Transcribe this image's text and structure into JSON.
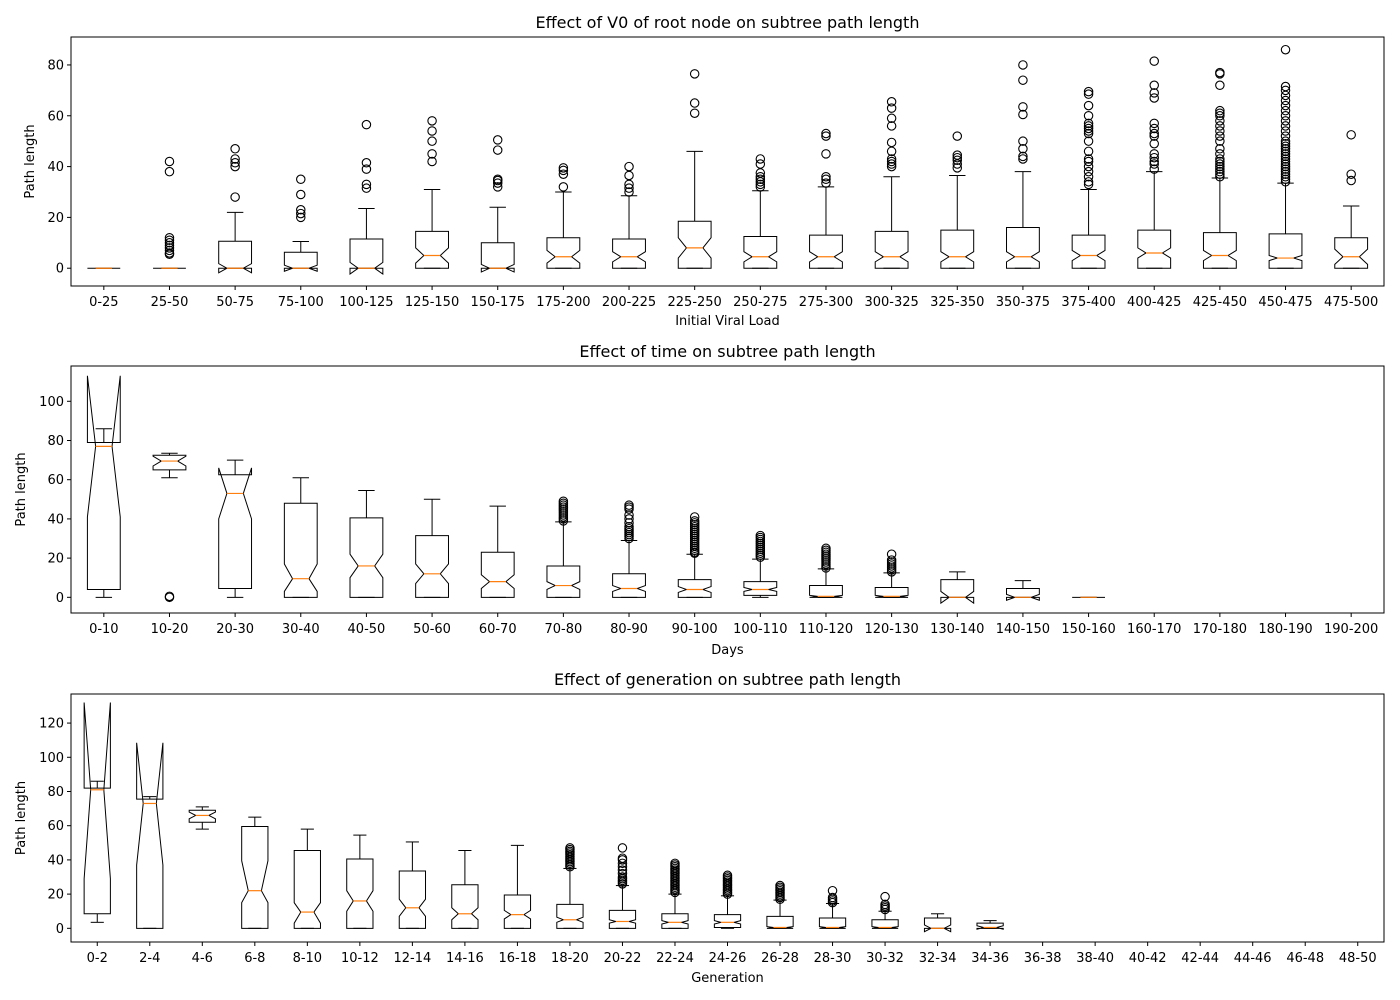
{
  "chart_data": [
    {
      "type": "boxplot",
      "title": "Effect of V0 of root node on subtree path length",
      "xlabel": "Initial Viral Load",
      "ylabel": "Path length",
      "ylim": [
        -7,
        91
      ],
      "yticks": [
        0,
        20,
        40,
        60,
        80
      ],
      "grid": false,
      "categories": [
        "0-25",
        "25-50",
        "50-75",
        "75-100",
        "100-125",
        "125-150",
        "150-175",
        "175-200",
        "200-225",
        "225-250",
        "250-275",
        "275-300",
        "300-325",
        "325-350",
        "350-375",
        "375-400",
        "400-425",
        "425-450",
        "450-475",
        "475-500"
      ],
      "boxes": [
        {
          "wl": 0,
          "q1": 0,
          "med": 0,
          "q3": 0,
          "wh": 0,
          "nl": 0,
          "nh": 0,
          "fliers": []
        },
        {
          "wl": 0,
          "q1": 0,
          "med": 0,
          "q3": 0,
          "wh": 0,
          "nl": 0,
          "nh": 0,
          "fliers": [
            5.5,
            6,
            7,
            8,
            9,
            10,
            11,
            12,
            38,
            42
          ]
        },
        {
          "wl": 0,
          "q1": 0,
          "med": 0,
          "q3": 10.6,
          "wh": 22,
          "nl": -1.8,
          "nh": 1.8,
          "fliers": [
            28,
            40,
            41.5,
            43,
            47
          ]
        },
        {
          "wl": 0,
          "q1": 0,
          "med": 0,
          "q3": 6.3,
          "wh": 10.5,
          "nl": -1.2,
          "nh": 1.2,
          "fliers": [
            20,
            21.5,
            23,
            29,
            35
          ]
        },
        {
          "wl": 0,
          "q1": 0,
          "med": 0,
          "q3": 11.5,
          "wh": 23.5,
          "nl": -2.3,
          "nh": 2.3,
          "fliers": [
            31.5,
            33,
            39,
            41.5,
            56.5
          ]
        },
        {
          "wl": 0,
          "q1": 0,
          "med": 5,
          "q3": 14.5,
          "wh": 31,
          "nl": 2,
          "nh": 8,
          "fliers": [
            42,
            45,
            50,
            54,
            58
          ]
        },
        {
          "wl": 0,
          "q1": 0,
          "med": 0,
          "q3": 10,
          "wh": 24,
          "nl": -1.5,
          "nh": 1.5,
          "fliers": [
            32,
            33.5,
            34.5,
            35,
            46.5,
            50.5
          ]
        },
        {
          "wl": 0,
          "q1": 0,
          "med": 4.5,
          "q3": 12,
          "wh": 30,
          "nl": 2,
          "nh": 7,
          "fliers": [
            32,
            37,
            38.5,
            39.5
          ]
        },
        {
          "wl": 0,
          "q1": 0,
          "med": 4.5,
          "q3": 11.5,
          "wh": 28.5,
          "nl": 2.5,
          "nh": 6.5,
          "fliers": [
            30,
            31.5,
            33,
            36.5,
            40
          ]
        },
        {
          "wl": 0,
          "q1": 0,
          "med": 8,
          "q3": 18.5,
          "wh": 46,
          "nl": 4,
          "nh": 12,
          "fliers": [
            61,
            65,
            76.5
          ]
        },
        {
          "wl": 0,
          "q1": 0,
          "med": 4.5,
          "q3": 12.5,
          "wh": 30.5,
          "nl": 2.5,
          "nh": 6.5,
          "fliers": [
            32,
            33,
            34,
            35,
            36,
            37.5,
            41,
            43
          ]
        },
        {
          "wl": 0,
          "q1": 0,
          "med": 4.5,
          "q3": 13,
          "wh": 32,
          "nl": 2.5,
          "nh": 6.5,
          "fliers": [
            33.5,
            35,
            36,
            45,
            52,
            53
          ]
        },
        {
          "wl": 0,
          "q1": 0,
          "med": 4.5,
          "q3": 14.5,
          "wh": 36,
          "nl": 2.5,
          "nh": 6.5,
          "fliers": [
            40,
            41,
            42,
            43,
            46,
            49.5,
            56,
            59,
            63,
            65.5
          ]
        },
        {
          "wl": 0,
          "q1": 0,
          "med": 4.5,
          "q3": 15,
          "wh": 36.5,
          "nl": 2.5,
          "nh": 6.5,
          "fliers": [
            39.5,
            41,
            42.5,
            43.5,
            44.5,
            52
          ]
        },
        {
          "wl": 0,
          "q1": 0,
          "med": 4.5,
          "q3": 16,
          "wh": 38,
          "nl": 2.5,
          "nh": 6.5,
          "fliers": [
            43,
            44,
            47,
            50,
            60.5,
            63.5,
            74,
            80
          ]
        },
        {
          "wl": 0,
          "q1": 0,
          "med": 5,
          "q3": 13,
          "wh": 31,
          "nl": 3,
          "nh": 7,
          "fliers": [
            33,
            34,
            36,
            38,
            40,
            42,
            43,
            46,
            50,
            53,
            54,
            55,
            56,
            57,
            60,
            64,
            68.5,
            69.5
          ]
        },
        {
          "wl": 0,
          "q1": 0,
          "med": 6,
          "q3": 15,
          "wh": 38,
          "nl": 4,
          "nh": 8,
          "fliers": [
            39,
            41,
            42,
            43.5,
            45,
            49,
            52,
            53,
            55,
            57,
            67,
            69,
            72,
            81.5
          ]
        },
        {
          "wl": 0,
          "q1": 0,
          "med": 5,
          "q3": 14,
          "wh": 35.5,
          "nl": 3,
          "nh": 7,
          "fliers": [
            36,
            37,
            38,
            39,
            40,
            41,
            42,
            43,
            45,
            47,
            50,
            52,
            54,
            56,
            58,
            60,
            61,
            62,
            72,
            76.5,
            77
          ]
        },
        {
          "wl": 0,
          "q1": 0,
          "med": 4,
          "q3": 13.5,
          "wh": 33.5,
          "nl": 3,
          "nh": 5,
          "fliers": [
            34,
            35,
            36,
            37,
            38,
            39,
            40,
            41,
            42,
            43,
            44,
            45,
            46,
            47,
            48,
            49,
            50,
            52,
            54,
            56,
            58,
            60,
            62,
            64,
            66,
            68,
            70,
            71.5,
            86
          ]
        },
        {
          "wl": 0,
          "q1": 0,
          "med": 4.5,
          "q3": 12,
          "wh": 24.5,
          "nl": 1.5,
          "nh": 7.5,
          "fliers": [
            34.5,
            37,
            52.5
          ]
        }
      ]
    },
    {
      "type": "boxplot",
      "title": "Effect of time on subtree path length",
      "xlabel": "Days",
      "ylabel": "Path length",
      "ylim": [
        -8,
        118
      ],
      "yticks": [
        0,
        20,
        40,
        60,
        80,
        100
      ],
      "grid": false,
      "categories": [
        "0-10",
        "10-20",
        "20-30",
        "30-40",
        "40-50",
        "50-60",
        "60-70",
        "70-80",
        "80-90",
        "90-100",
        "100-110",
        "110-120",
        "120-130",
        "130-140",
        "140-150",
        "150-160",
        "160-170",
        "170-180",
        "180-190",
        "190-200"
      ],
      "boxes": [
        {
          "wl": 0,
          "q1": 4,
          "med": 77,
          "q3": 79,
          "wh": 86,
          "nl": 41,
          "nh": 113,
          "fliers": []
        },
        {
          "wl": 61,
          "q1": 65,
          "med": 69.5,
          "q3": 72.5,
          "wh": 73.5,
          "nl": 67,
          "nh": 72,
          "fliers": [
            0,
            0.5
          ]
        },
        {
          "wl": 0,
          "q1": 4.5,
          "med": 53,
          "q3": 62.5,
          "wh": 70,
          "nl": 40,
          "nh": 66,
          "fliers": []
        },
        {
          "wl": 0,
          "q1": 0,
          "med": 9.5,
          "q3": 48,
          "wh": 61,
          "nl": 3,
          "nh": 17,
          "fliers": []
        },
        {
          "wl": 0,
          "q1": 0,
          "med": 16,
          "q3": 40.5,
          "wh": 54.5,
          "nl": 10,
          "nh": 22,
          "fliers": []
        },
        {
          "wl": 0,
          "q1": 0,
          "med": 12,
          "q3": 31.5,
          "wh": 50,
          "nl": 7,
          "nh": 17,
          "fliers": []
        },
        {
          "wl": 0,
          "q1": 0,
          "med": 8,
          "q3": 23,
          "wh": 46.5,
          "nl": 4.5,
          "nh": 11.5,
          "fliers": []
        },
        {
          "wl": 0,
          "q1": 0,
          "med": 6,
          "q3": 16,
          "wh": 38.5,
          "nl": 4,
          "nh": 8,
          "fliers": [
            39,
            40,
            41,
            42,
            43,
            44,
            45,
            46,
            47,
            48,
            49
          ]
        },
        {
          "wl": 0,
          "q1": 0,
          "med": 4.5,
          "q3": 12,
          "wh": 29,
          "nl": 3,
          "nh": 6,
          "fliers": [
            30,
            31,
            32,
            33,
            34,
            35,
            36,
            38,
            40,
            42,
            45,
            46,
            47
          ]
        },
        {
          "wl": 0,
          "q1": 0,
          "med": 4,
          "q3": 9,
          "wh": 22,
          "nl": 2.5,
          "nh": 5.5,
          "fliers": [
            22.5,
            23,
            24,
            25,
            26,
            27,
            28,
            29,
            30,
            31,
            32,
            33,
            34,
            35,
            36,
            37,
            38,
            39,
            41
          ]
        },
        {
          "wl": 0,
          "q1": 1,
          "med": 4,
          "q3": 8,
          "wh": 19.5,
          "nl": 3,
          "nh": 5,
          "fliers": [
            20.5,
            21.5,
            22.5,
            23.5,
            24.5,
            25.5,
            26.5,
            27.5,
            28.5,
            29.5,
            30.5,
            31.5
          ]
        },
        {
          "wl": 0,
          "q1": 0,
          "med": 0.5,
          "q3": 6,
          "wh": 14.5,
          "nl": 0,
          "nh": 1,
          "fliers": [
            15,
            16,
            17,
            18,
            19,
            20,
            21,
            22,
            23,
            24,
            25
          ]
        },
        {
          "wl": 0,
          "q1": 0,
          "med": 0.5,
          "q3": 5,
          "wh": 12.5,
          "nl": 0,
          "nh": 1,
          "fliers": [
            13,
            14,
            15,
            16,
            17,
            18,
            19,
            22
          ]
        },
        {
          "wl": 0,
          "q1": 0,
          "med": 0,
          "q3": 9,
          "wh": 13,
          "nl": -3,
          "nh": 3,
          "fliers": []
        },
        {
          "wl": 0,
          "q1": 0,
          "med": 0,
          "q3": 4.5,
          "wh": 8.5,
          "nl": -1.5,
          "nh": 1.5,
          "fliers": []
        },
        {
          "wl": 0,
          "q1": 0,
          "med": 0,
          "q3": 0,
          "wh": 0,
          "nl": 0,
          "nh": 0,
          "fliers": []
        },
        null,
        null,
        null,
        null
      ]
    },
    {
      "type": "boxplot",
      "title": "Effect of generation on subtree path length",
      "xlabel": "Generation",
      "ylabel": "Path length",
      "ylim": [
        -8,
        137
      ],
      "yticks": [
        0,
        20,
        40,
        60,
        80,
        100,
        120
      ],
      "grid": false,
      "categories": [
        "0-2",
        "2-4",
        "4-6",
        "6-8",
        "8-10",
        "10-12",
        "12-14",
        "14-16",
        "16-18",
        "18-20",
        "20-22",
        "22-24",
        "24-26",
        "26-28",
        "28-30",
        "30-32",
        "32-34",
        "34-36",
        "36-38",
        "38-40",
        "40-42",
        "42-44",
        "44-46",
        "46-48",
        "48-50"
      ],
      "boxes": [
        {
          "wl": 3.5,
          "q1": 8.5,
          "med": 81,
          "q3": 82,
          "wh": 86,
          "nl": 29,
          "nh": 132,
          "fliers": []
        },
        {
          "wl": 0,
          "q1": 0,
          "med": 73,
          "q3": 75.5,
          "wh": 77,
          "nl": 37,
          "nh": 108.5,
          "fliers": []
        },
        {
          "wl": 58,
          "q1": 62,
          "med": 66,
          "q3": 69,
          "wh": 71,
          "nl": 64,
          "nh": 68,
          "fliers": []
        },
        {
          "wl": 0,
          "q1": 0,
          "med": 22,
          "q3": 59.5,
          "wh": 65,
          "nl": 15,
          "nh": 39.5,
          "fliers": []
        },
        {
          "wl": 0,
          "q1": 0,
          "med": 9.5,
          "q3": 45.5,
          "wh": 58,
          "nl": 3,
          "nh": 15,
          "fliers": []
        },
        {
          "wl": 0,
          "q1": 0,
          "med": 16,
          "q3": 40.5,
          "wh": 54.5,
          "nl": 10,
          "nh": 22,
          "fliers": []
        },
        {
          "wl": 0,
          "q1": 0,
          "med": 12,
          "q3": 33.5,
          "wh": 50.5,
          "nl": 7,
          "nh": 17,
          "fliers": []
        },
        {
          "wl": 0,
          "q1": 0,
          "med": 8.5,
          "q3": 25.5,
          "wh": 45.5,
          "nl": 5,
          "nh": 12,
          "fliers": []
        },
        {
          "wl": 0,
          "q1": 0,
          "med": 8,
          "q3": 19.5,
          "wh": 48.5,
          "nl": 5.5,
          "nh": 10.5,
          "fliers": []
        },
        {
          "wl": 0,
          "q1": 0,
          "med": 5,
          "q3": 14,
          "wh": 35,
          "nl": 3.5,
          "nh": 6.5,
          "fliers": [
            36,
            37,
            38,
            39,
            40,
            41,
            42,
            43,
            44,
            45,
            46,
            47
          ]
        },
        {
          "wl": 0,
          "q1": 0,
          "med": 4,
          "q3": 10.5,
          "wh": 25,
          "nl": 3,
          "nh": 5,
          "fliers": [
            26,
            27,
            28,
            29,
            30,
            32,
            34,
            36,
            38,
            40,
            41,
            47
          ]
        },
        {
          "wl": 0,
          "q1": 0,
          "med": 3.5,
          "q3": 8.5,
          "wh": 20,
          "nl": 2.5,
          "nh": 4.5,
          "fliers": [
            21,
            22,
            23,
            24,
            25,
            26,
            27,
            28,
            29,
            30,
            31,
            32,
            33,
            34,
            35,
            36,
            37,
            38
          ]
        },
        {
          "wl": 0,
          "q1": 0.5,
          "med": 3.5,
          "q3": 8,
          "wh": 19,
          "nl": 2.5,
          "nh": 4.5,
          "fliers": [
            20,
            21,
            22,
            23,
            24,
            25,
            26,
            27,
            28,
            29,
            30,
            31
          ]
        },
        {
          "wl": 0,
          "q1": 0,
          "med": 0.5,
          "q3": 7,
          "wh": 16.5,
          "nl": 0,
          "nh": 1,
          "fliers": [
            17,
            18,
            19,
            20,
            21,
            22,
            23,
            24,
            25
          ]
        },
        {
          "wl": 0,
          "q1": 0,
          "med": 0.5,
          "q3": 6,
          "wh": 14.5,
          "nl": 0,
          "nh": 1,
          "fliers": [
            15,
            16,
            17,
            18,
            22
          ]
        },
        {
          "wl": 0,
          "q1": 0,
          "med": 0.5,
          "q3": 5,
          "wh": 10,
          "nl": 0,
          "nh": 1,
          "fliers": [
            11,
            12,
            13,
            14,
            18.5
          ]
        },
        {
          "wl": 0,
          "q1": 0,
          "med": 0,
          "q3": 6,
          "wh": 8.5,
          "nl": -2,
          "nh": 2,
          "fliers": []
        },
        {
          "wl": 0,
          "q1": 0,
          "med": 0.5,
          "q3": 3,
          "wh": 4.5,
          "nl": -0.5,
          "nh": 1.5,
          "fliers": []
        },
        null,
        null,
        null,
        null,
        null,
        null,
        null
      ]
    }
  ]
}
